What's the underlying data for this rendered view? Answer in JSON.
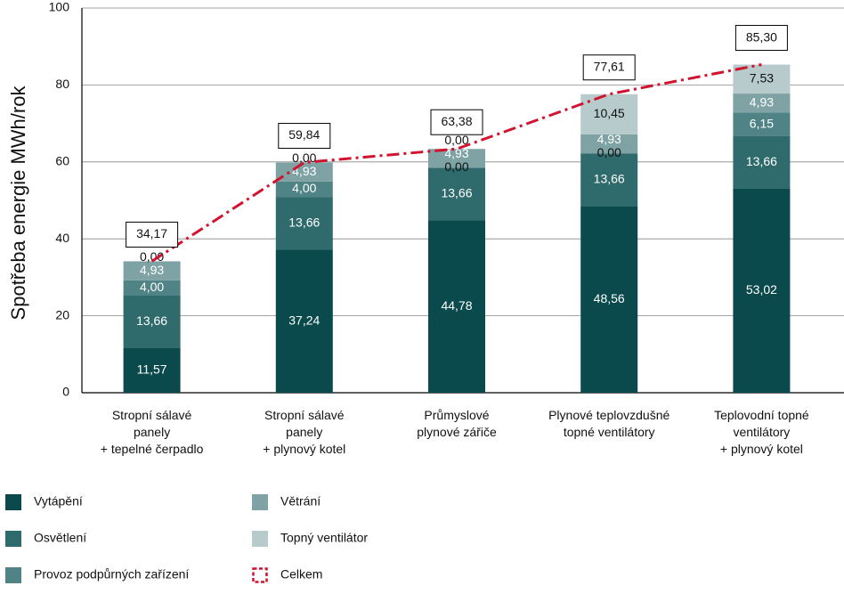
{
  "chart_data": {
    "type": "stacked-bar-with-line",
    "title": "",
    "xlabel": "",
    "ylabel": "Spotřeba energie MWh/rok",
    "ylim": [
      0,
      100
    ],
    "yticks": [
      "0",
      "20",
      "40",
      "60",
      "80",
      "100"
    ],
    "grid": true,
    "categories": [
      [
        "Stropní sálavé",
        "panely",
        "+ tepelné čerpadlo"
      ],
      [
        "Stropní sálavé",
        "panely",
        "+ plynový kotel"
      ],
      [
        "Průmyslové",
        "plynové zářiče"
      ],
      [
        "Plynové teplovzdušné",
        "topné ventilátory"
      ],
      [
        "Teplovodní topné",
        "ventilátory",
        "+ plynový kotel"
      ]
    ],
    "series": [
      {
        "name": "Vytápění",
        "color": "#0b4a4c",
        "labelColor": "#ffffff",
        "values": [
          11.57,
          37.24,
          44.78,
          48.56,
          53.02
        ],
        "labels": [
          "11,57",
          "37,24",
          "44,78",
          "48,56",
          "53,02"
        ]
      },
      {
        "name": "Osvětlení",
        "color": "#2f6a6c",
        "labelColor": "#ffffff",
        "values": [
          13.66,
          13.66,
          13.66,
          13.66,
          13.66
        ],
        "labels": [
          "13,66",
          "13,66",
          "13,66",
          "13,66",
          "13,66"
        ]
      },
      {
        "name": "Provoz podpůrných zařízení",
        "color": "#4f8385",
        "labelColor": "#ffffff",
        "values": [
          4.0,
          4.0,
          0.0,
          0.0,
          6.15
        ],
        "labels": [
          "4,00",
          "4,00",
          "0,00",
          "0,00",
          "6,15"
        ]
      },
      {
        "name": "Větrání",
        "color": "#7fa2a4",
        "labelColor": "#ffffff",
        "values": [
          4.93,
          4.93,
          4.93,
          4.93,
          4.93
        ],
        "labels": [
          "4,93",
          "4,93",
          "4,93",
          "4,93",
          "4,93"
        ]
      },
      {
        "name": "Topný ventilátor",
        "color": "#b7cbcc",
        "labelColor": "#111111",
        "values": [
          0.0,
          0.0,
          0.0,
          10.45,
          7.53
        ],
        "labels": [
          "0,00",
          "0,00",
          "0,00",
          "10,45",
          "7,53"
        ]
      }
    ],
    "total": {
      "name": "Celkem",
      "color": "#d2122e",
      "values": [
        34.17,
        59.84,
        63.38,
        77.61,
        85.3
      ],
      "labels": [
        "34,17",
        "59,84",
        "63,38",
        "77,61",
        "85,30"
      ]
    },
    "legend": [
      {
        "label": "Vytápění",
        "color": "#0b4a4c",
        "kind": "box"
      },
      {
        "label": "Větrání",
        "color": "#7fa2a4",
        "kind": "box"
      },
      {
        "label": "Osvětlení",
        "color": "#2f6a6c",
        "kind": "box"
      },
      {
        "label": "Topný ventilátor",
        "color": "#b7cbcc",
        "kind": "box"
      },
      {
        "label": "Provoz podpůrných zařízení",
        "color": "#4f8385",
        "kind": "box"
      },
      {
        "label": "Celkem",
        "color": "#d2122e",
        "kind": "dashed"
      }
    ]
  }
}
